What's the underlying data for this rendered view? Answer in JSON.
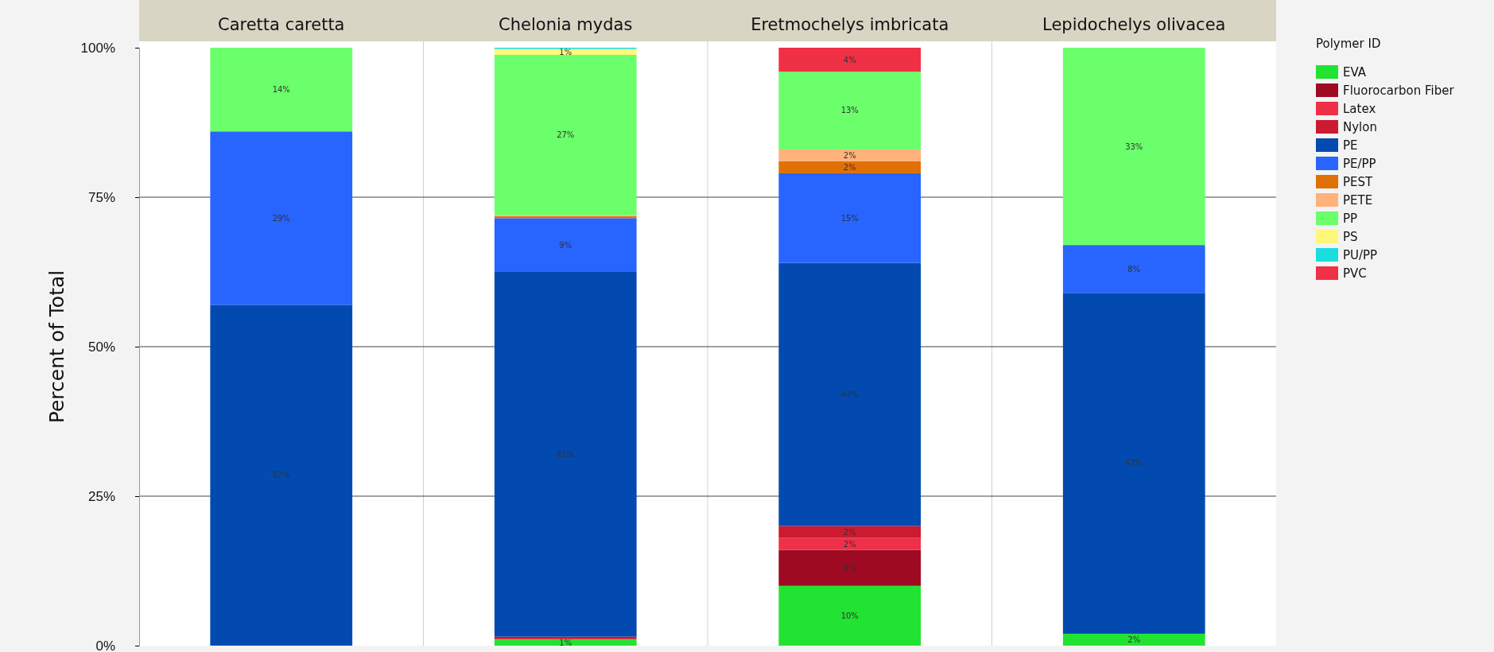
{
  "chart_data": {
    "type": "bar",
    "stacked": true,
    "ylabel": "Percent  of Total",
    "legend_title": "Polymer ID",
    "legend": "top right",
    "grid": "y",
    "categories": [
      "Caretta caretta",
      "Chelonia mydas",
      "Eretmochelys imbricata",
      "Lepidochelys olivacea"
    ],
    "ylim": [
      0,
      100
    ],
    "yticks": [
      {
        "value": 0,
        "label": "0%"
      },
      {
        "value": 25,
        "label": "25%"
      },
      {
        "value": 50,
        "label": "50%"
      },
      {
        "value": 75,
        "label": "75%"
      },
      {
        "value": 100,
        "label": "100%"
      }
    ],
    "series": [
      {
        "name": "EVA",
        "color": "#22e332",
        "values": [
          null,
          1,
          10,
          2
        ],
        "value_labels": [
          null,
          "1%",
          "10%",
          "2%"
        ]
      },
      {
        "name": "Fluorocarbon Fiber",
        "color": "#9e0a22",
        "values": [
          null,
          null,
          6,
          null
        ],
        "value_labels": [
          null,
          null,
          "6%",
          null
        ]
      },
      {
        "name": "Latex",
        "color": "#ee3048",
        "values": [
          null,
          0.2,
          2,
          null
        ],
        "value_labels": [
          null,
          null,
          "2%",
          null
        ]
      },
      {
        "name": "Nylon",
        "color": "#cc1a30",
        "values": [
          null,
          0.3,
          2,
          null
        ],
        "value_labels": [
          null,
          null,
          "2%",
          null
        ]
      },
      {
        "name": "PE",
        "color": "#034ab0",
        "values": [
          57,
          61,
          44,
          57
        ],
        "value_labels": [
          "57%",
          "61%",
          "44%",
          "57%"
        ]
      },
      {
        "name": "PE/PP",
        "color": "#2865ff",
        "values": [
          29,
          9,
          15,
          8
        ],
        "value_labels": [
          "29%",
          "9%",
          "15%",
          "8%"
        ]
      },
      {
        "name": "PEST",
        "color": "#e07006",
        "values": [
          null,
          0.3,
          2,
          null
        ],
        "value_labels": [
          null,
          null,
          "2%",
          null
        ]
      },
      {
        "name": "PETE",
        "color": "#ffb27a",
        "values": [
          null,
          0.2,
          2,
          null
        ],
        "value_labels": [
          null,
          null,
          "2%",
          null
        ]
      },
      {
        "name": "PP",
        "color": "#6bff6b",
        "values": [
          14,
          26.8,
          13,
          33
        ],
        "value_labels": [
          "14%",
          "27%",
          "13%",
          "33%"
        ]
      },
      {
        "name": "PS",
        "color": "#fff77a",
        "values": [
          null,
          1,
          null,
          null
        ],
        "value_labels": [
          null,
          "1%",
          null,
          null
        ]
      },
      {
        "name": "PU/PP",
        "color": "#1adde0",
        "values": [
          null,
          0.2,
          null,
          null
        ],
        "value_labels": [
          null,
          null,
          null,
          null
        ]
      },
      {
        "name": "PVC",
        "color": "#f03045",
        "values": [
          null,
          null,
          4,
          null
        ],
        "value_labels": [
          null,
          null,
          "4%",
          null
        ]
      }
    ]
  }
}
